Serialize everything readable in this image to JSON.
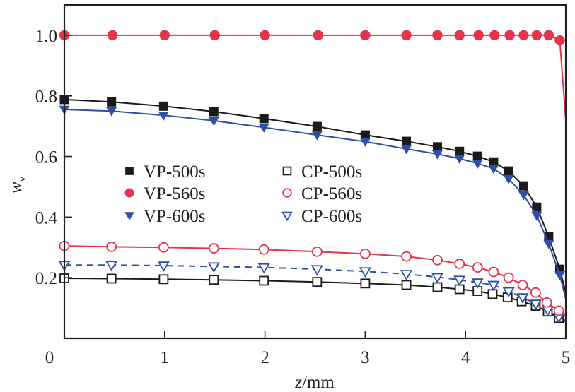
{
  "chart_data": {
    "type": "line",
    "title": "",
    "xlabel": "z/mm",
    "xlabel_italic_part": "z",
    "xlabel_rest": "/mm",
    "ylabel": "w_v",
    "ylabel_main": "w",
    "ylabel_sub": "v",
    "xlim": [
      0,
      5
    ],
    "ylim": [
      0,
      1.1
    ],
    "xticks": [
      0,
      1,
      2,
      3,
      4,
      5
    ],
    "xtick_labels": [
      "0",
      "1",
      "2",
      "3",
      "4",
      "5"
    ],
    "yticks": [
      0.2,
      0.4,
      0.6,
      0.8,
      1.0
    ],
    "ytick_labels": [
      "0.2",
      "0.4",
      "0.6",
      "0.8",
      "1.0"
    ],
    "grid": false,
    "legend_placement": "center-left",
    "series": [
      {
        "name": "VP-500s",
        "color": "#1a1a1a",
        "marker": "square-filled",
        "line": "solid",
        "x": [
          0,
          0.47,
          0.99,
          1.49,
          1.99,
          2.52,
          3.0,
          3.41,
          3.72,
          3.94,
          4.12,
          4.28,
          4.43,
          4.58,
          4.71,
          4.83,
          4.94
        ],
        "y": [
          0.788,
          0.78,
          0.766,
          0.748,
          0.725,
          0.699,
          0.671,
          0.65,
          0.632,
          0.617,
          0.601,
          0.582,
          0.552,
          0.503,
          0.433,
          0.335,
          0.228
        ],
        "line_end": [
          5,
          0.15
        ]
      },
      {
        "name": "VP-560s",
        "color": "#e5334b",
        "marker": "circle-filled",
        "line": "solid",
        "x": [
          0,
          0.48,
          1.0,
          1.5,
          2.0,
          2.53,
          3.0,
          3.41,
          3.72,
          3.94,
          4.13,
          4.29,
          4.44,
          4.58,
          4.71,
          4.83,
          4.94
        ],
        "y": [
          1.0,
          1.0,
          1.0,
          1.0,
          1.0,
          1.0,
          1.0,
          1.0,
          1.0,
          1.0,
          1.0,
          1.0,
          1.0,
          1.0,
          1.0,
          1.0,
          0.983
        ],
        "line_end": [
          5,
          0.72
        ]
      },
      {
        "name": "VP-600s",
        "color": "#2e4fa6",
        "marker": "triangle-down-filled",
        "line": "solid",
        "x": [
          0,
          0.47,
          0.99,
          1.49,
          1.99,
          2.52,
          3.0,
          3.41,
          3.72,
          3.94,
          4.12,
          4.28,
          4.43,
          4.58,
          4.71,
          4.83,
          4.94
        ],
        "y": [
          0.755,
          0.75,
          0.736,
          0.718,
          0.696,
          0.671,
          0.649,
          0.625,
          0.608,
          0.593,
          0.577,
          0.56,
          0.526,
          0.473,
          0.405,
          0.312,
          0.209
        ],
        "line_end": [
          5,
          0.13
        ]
      },
      {
        "name": "CP-500s",
        "color": "#1a1a1a",
        "marker": "square-open",
        "line": "solid",
        "x": [
          0,
          0.47,
          0.99,
          1.49,
          1.99,
          2.52,
          3.0,
          3.41,
          3.72,
          3.94,
          4.12,
          4.27,
          4.42,
          4.56,
          4.7,
          4.82,
          4.93
        ],
        "y": [
          0.198,
          0.197,
          0.195,
          0.193,
          0.19,
          0.186,
          0.181,
          0.176,
          0.169,
          0.162,
          0.156,
          0.146,
          0.135,
          0.122,
          0.107,
          0.088,
          0.067
        ],
        "line_end": [
          5,
          0.055
        ]
      },
      {
        "name": "CP-560s",
        "color": "#e5334b",
        "marker": "circle-open",
        "line": "solid",
        "x": [
          0,
          0.47,
          0.99,
          1.49,
          1.99,
          2.52,
          3.0,
          3.41,
          3.72,
          3.94,
          4.12,
          4.28,
          4.43,
          4.57,
          4.7,
          4.81,
          4.93
        ],
        "y": [
          0.305,
          0.302,
          0.3,
          0.297,
          0.293,
          0.286,
          0.279,
          0.27,
          0.258,
          0.246,
          0.234,
          0.219,
          0.2,
          0.176,
          0.151,
          0.118,
          0.091
        ],
        "line_end": [
          5,
          0.074
        ]
      },
      {
        "name": "CP-600s",
        "color": "#2e4fa6",
        "marker": "triangle-down-open",
        "line": "dashed",
        "x": [
          0,
          0.47,
          0.99,
          1.49,
          1.99,
          2.52,
          3.0,
          3.41,
          3.72,
          3.94,
          4.12,
          4.28,
          4.43,
          4.57,
          4.7,
          4.82,
          4.93
        ],
        "y": [
          0.242,
          0.242,
          0.24,
          0.237,
          0.234,
          0.228,
          0.221,
          0.212,
          0.202,
          0.193,
          0.184,
          0.176,
          0.155,
          0.135,
          0.114,
          0.093,
          0.07
        ],
        "line_end": [
          5,
          0.058
        ]
      }
    ]
  }
}
